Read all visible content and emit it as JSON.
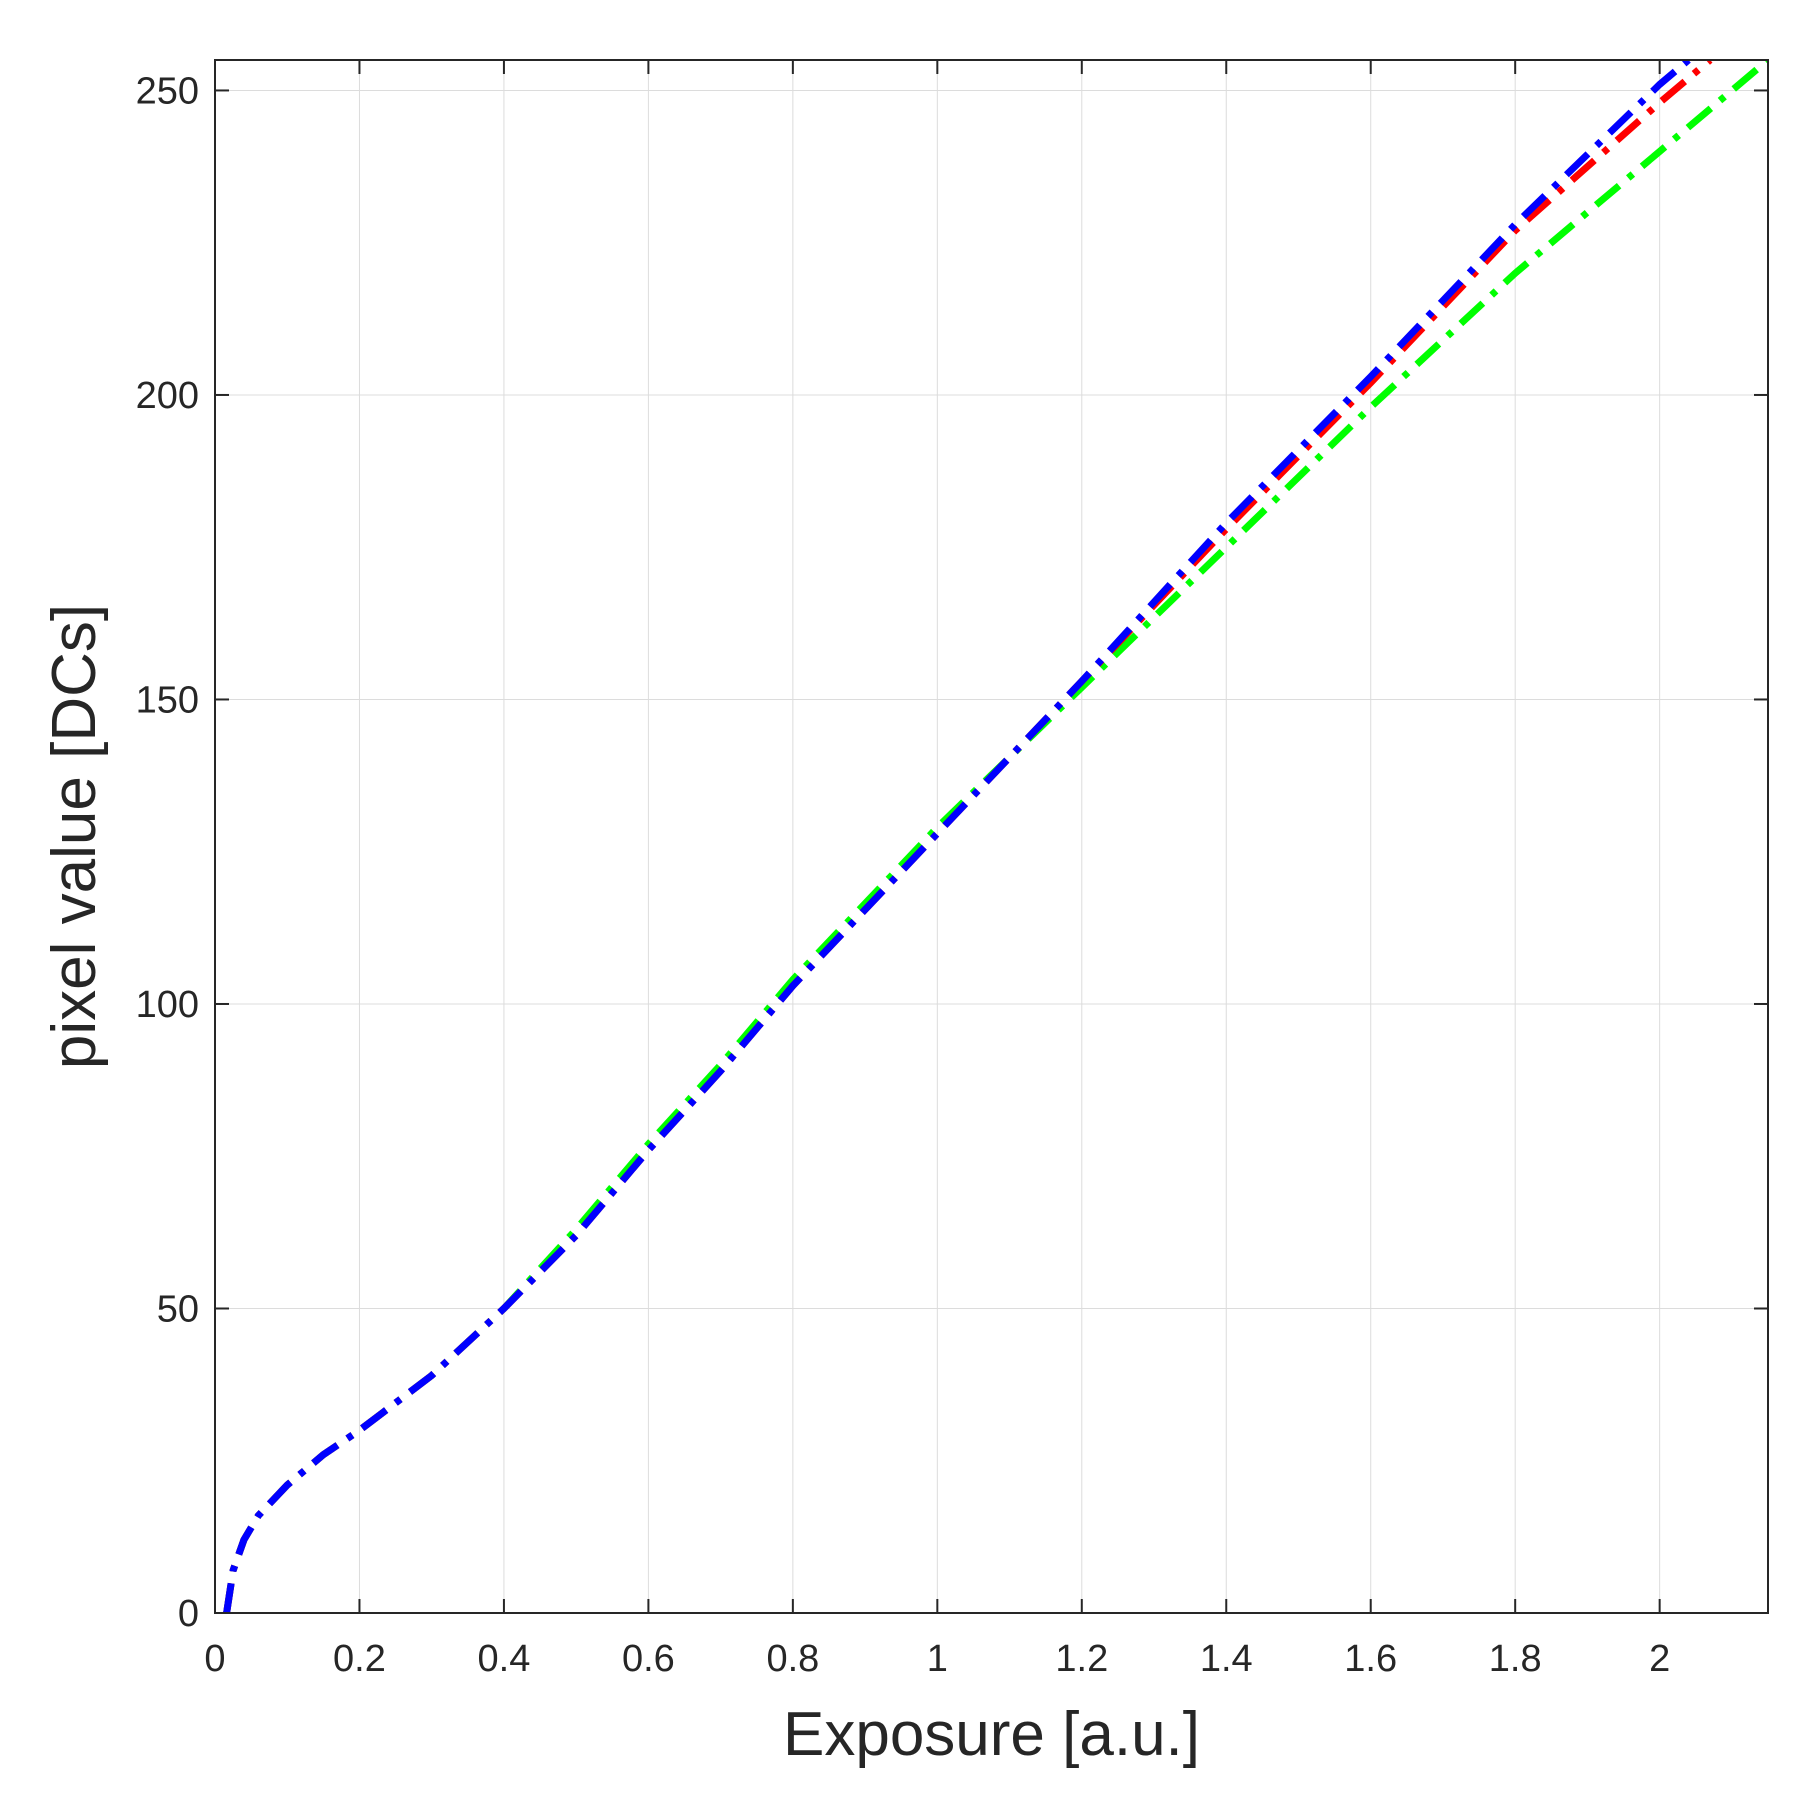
{
  "chart_data": {
    "type": "line",
    "title": "",
    "xlabel": "Exposure [a.u.]",
    "ylabel": "pixel value [DCs]",
    "xlim": [
      0,
      2.15
    ],
    "ylim": [
      0,
      255
    ],
    "xticks": [
      0,
      0.2,
      0.4,
      0.6,
      0.8,
      1,
      1.2,
      1.4,
      1.6,
      1.8,
      2
    ],
    "xtick_labels": [
      "0",
      "0.2",
      "0.4",
      "0.6",
      "0.8",
      "1",
      "1.2",
      "1.4",
      "1.6",
      "1.8",
      "2"
    ],
    "yticks": [
      0,
      50,
      100,
      150,
      200,
      250
    ],
    "ytick_labels": [
      "0",
      "50",
      "100",
      "150",
      "200",
      "250"
    ],
    "grid": true,
    "legend": "none",
    "series": [
      {
        "color": "#00ff00",
        "line_style": "dash-dot",
        "x": [
          0.016,
          0.025,
          0.04,
          0.06,
          0.1,
          0.15,
          0.2,
          0.3,
          0.4,
          0.5,
          0.6,
          0.7,
          0.8,
          1.0,
          1.2,
          1.4,
          1.6,
          1.8,
          2.0,
          2.15
        ],
        "y": [
          0,
          7,
          12,
          16,
          21,
          26,
          30,
          39,
          50,
          63,
          77,
          90,
          104,
          129,
          152,
          175,
          198,
          220,
          240,
          255
        ]
      },
      {
        "color": "#ff0000",
        "line_style": "dash-dot",
        "x": [
          0.016,
          0.025,
          0.04,
          0.06,
          0.1,
          0.15,
          0.2,
          0.3,
          0.4,
          0.5,
          0.6,
          0.7,
          0.8,
          1.0,
          1.2,
          1.4,
          1.6,
          1.8,
          2.0,
          2.07
        ],
        "y": [
          0,
          7,
          12,
          16,
          21,
          26,
          30,
          39,
          50,
          62,
          76,
          89,
          103,
          128,
          153,
          178,
          202,
          227,
          248,
          255
        ]
      },
      {
        "color": "#0000ff",
        "line_style": "dash-dot",
        "x": [
          0.016,
          0.025,
          0.04,
          0.06,
          0.1,
          0.15,
          0.2,
          0.3,
          0.4,
          0.5,
          0.6,
          0.7,
          0.8,
          1.0,
          1.2,
          1.4,
          1.6,
          1.8,
          2.0,
          2.04
        ],
        "y": [
          0,
          7,
          12,
          16,
          21,
          26,
          30,
          39,
          50,
          62,
          76,
          89,
          103,
          128,
          153,
          179,
          203,
          228,
          251,
          255
        ]
      }
    ]
  }
}
